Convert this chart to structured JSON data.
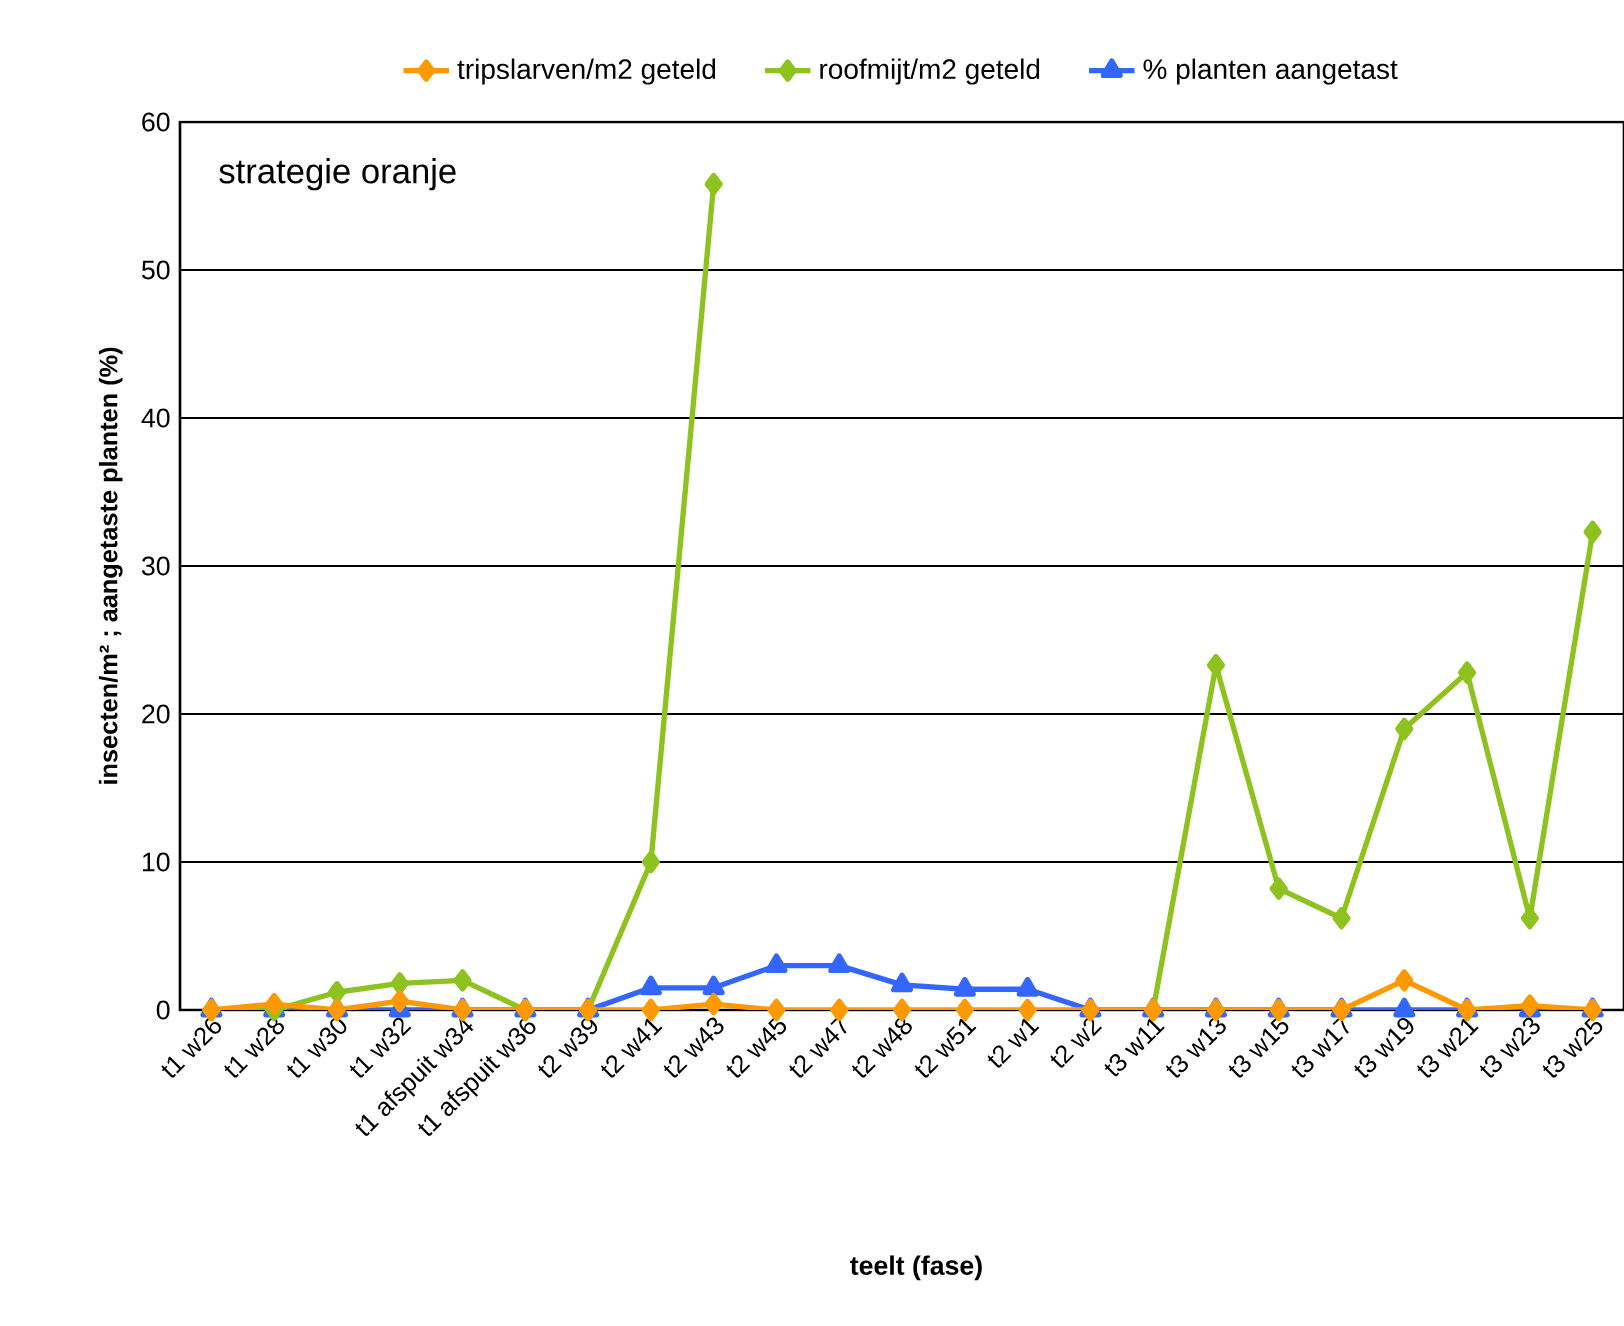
{
  "chart_data": {
    "type": "line",
    "title": null,
    "categories": [
      "t1  w26",
      "t1  w28",
      "t1  w30",
      "t1  w32",
      "t1 afspuit w34",
      "t1 afspuit w36",
      "t2 w39",
      "t2  w41",
      "t2  w43",
      "t2  w45",
      "t2  w47",
      "t2  w48",
      "t2  w51",
      "t2  w1",
      "t2  w2",
      "t3 w11",
      "t3  w13",
      "t3  w15",
      "t3  w17",
      "t3  w19",
      "t3  w21",
      "t3  w23",
      "t3  w25"
    ],
    "series": [
      {
        "name": "tripslarven/m2 geteld",
        "color": "#ff9900",
        "marker": "diamond",
        "values": [
          0,
          0.4,
          0,
          0.6,
          0,
          0,
          0,
          0,
          0.4,
          0,
          0,
          0,
          0,
          0,
          0,
          0,
          0,
          0,
          0,
          2.0,
          0,
          0.3,
          0
        ]
      },
      {
        "name": "roofmijt/m2 geteld",
        "color": "#8dc21f",
        "marker": "diamond",
        "values": [
          0,
          0,
          1.2,
          1.8,
          2.0,
          0,
          0,
          10,
          55.8,
          null,
          null,
          null,
          null,
          null,
          null,
          0,
          23.3,
          8.2,
          6.2,
          19,
          22.8,
          6.2,
          32.3
        ]
      },
      {
        "name": "% planten aangetast",
        "color": "#3366ff",
        "marker": "triangle",
        "values": [
          0,
          0,
          0,
          0,
          0,
          0,
          0,
          1.5,
          1.5,
          3.0,
          3.0,
          1.7,
          1.4,
          1.4,
          0,
          0,
          0,
          0,
          0,
          0,
          0,
          0,
          0
        ]
      }
    ],
    "ylabel": "insecten/m² ; aangetaste planten (%)",
    "xlabel": "teelt (fase)",
    "annotations": [
      "strategie oranje"
    ],
    "ylim": [
      0,
      60
    ],
    "yticks": [
      0,
      10,
      20,
      30,
      40,
      50,
      60
    ],
    "grid": "y",
    "legend": "top",
    "line_style": "solid"
  }
}
